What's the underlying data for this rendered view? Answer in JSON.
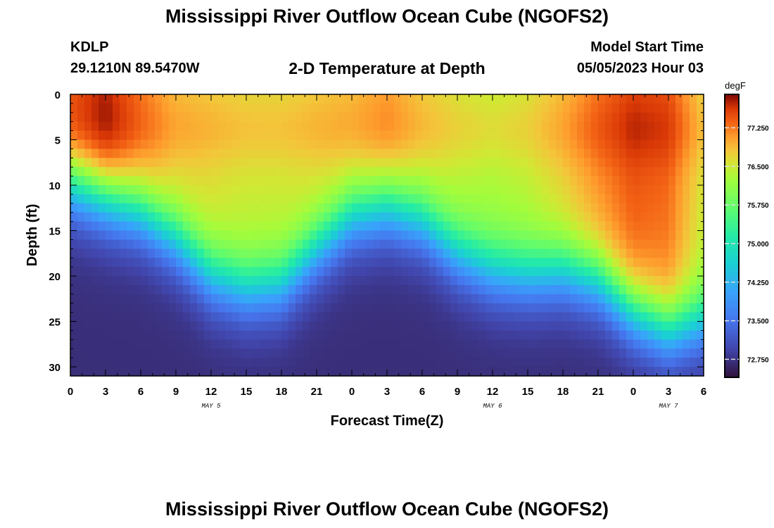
{
  "header": {
    "title": "Mississippi River Outflow Ocean Cube (NGOFS2)",
    "station_id": "KDLP",
    "location": "29.1210N  89.5470W",
    "subtitle": "2-D Temperature at Depth",
    "model_start_label": "Model Start Time",
    "model_start_value": "05/05/2023 Hour 03"
  },
  "footer": {
    "title": "Mississippi River Outflow Ocean Cube (NGOFS2)"
  },
  "chart_data": {
    "type": "heatmap",
    "xlabel": "Forecast Time(Z)",
    "ylabel": "Depth (ft)",
    "x_range_hours": [
      0,
      54
    ],
    "x_ticks": [
      {
        "hour": 0,
        "label": "0"
      },
      {
        "hour": 3,
        "label": "3"
      },
      {
        "hour": 6,
        "label": "6"
      },
      {
        "hour": 9,
        "label": "9"
      },
      {
        "hour": 12,
        "label": "12"
      },
      {
        "hour": 15,
        "label": "15"
      },
      {
        "hour": 18,
        "label": "18"
      },
      {
        "hour": 21,
        "label": "21"
      },
      {
        "hour": 24,
        "label": "0"
      },
      {
        "hour": 27,
        "label": "3"
      },
      {
        "hour": 30,
        "label": "6"
      },
      {
        "hour": 33,
        "label": "9"
      },
      {
        "hour": 36,
        "label": "12"
      },
      {
        "hour": 39,
        "label": "15"
      },
      {
        "hour": 42,
        "label": "18"
      },
      {
        "hour": 45,
        "label": "21"
      },
      {
        "hour": 48,
        "label": "0"
      },
      {
        "hour": 51,
        "label": "3"
      },
      {
        "hour": 54,
        "label": "6"
      }
    ],
    "date_labels": [
      {
        "hour": 12,
        "label": "MAY 5"
      },
      {
        "hour": 36,
        "label": "MAY 6"
      },
      {
        "hour": 51,
        "label": "MAY 7"
      }
    ],
    "y_range": [
      0,
      31
    ],
    "y_ticks": [
      0,
      5,
      10,
      15,
      20,
      25,
      30
    ],
    "colorbar": {
      "unit": "degF",
      "range": [
        72.4,
        77.9
      ],
      "ticks": [
        "77.250",
        "76.500",
        "75.750",
        "75.000",
        "74.250",
        "73.500",
        "72.750"
      ]
    },
    "thermocline_depth_ft": [
      {
        "hour": 0,
        "depth": 10
      },
      {
        "hour": 3,
        "depth": 11.5
      },
      {
        "hour": 6,
        "depth": 13
      },
      {
        "hour": 9,
        "depth": 16
      },
      {
        "hour": 12,
        "depth": 20
      },
      {
        "hour": 15,
        "depth": 21.5
      },
      {
        "hour": 18,
        "depth": 21
      },
      {
        "hour": 21,
        "depth": 17
      },
      {
        "hour": 24,
        "depth": 13.5
      },
      {
        "hour": 27,
        "depth": 12.5
      },
      {
        "hour": 30,
        "depth": 14
      },
      {
        "hour": 33,
        "depth": 17.5
      },
      {
        "hour": 36,
        "depth": 19.5
      },
      {
        "hour": 39,
        "depth": 20
      },
      {
        "hour": 42,
        "depth": 19.5
      },
      {
        "hour": 45,
        "depth": 20.5
      },
      {
        "hour": 48,
        "depth": 24
      },
      {
        "hour": 51,
        "depth": 26
      },
      {
        "hour": 54,
        "depth": 25
      }
    ],
    "surface_temp_degF": [
      {
        "hour": 0,
        "temp": 77.4
      },
      {
        "hour": 3,
        "temp": 77.7
      },
      {
        "hour": 6,
        "temp": 77.2
      },
      {
        "hour": 9,
        "temp": 76.8
      },
      {
        "hour": 12,
        "temp": 76.7
      },
      {
        "hour": 15,
        "temp": 76.6
      },
      {
        "hour": 18,
        "temp": 76.6
      },
      {
        "hour": 21,
        "temp": 76.7
      },
      {
        "hour": 24,
        "temp": 76.8
      },
      {
        "hour": 27,
        "temp": 77.0
      },
      {
        "hour": 30,
        "temp": 76.7
      },
      {
        "hour": 33,
        "temp": 76.5
      },
      {
        "hour": 36,
        "temp": 76.4
      },
      {
        "hour": 39,
        "temp": 76.5
      },
      {
        "hour": 42,
        "temp": 76.8
      },
      {
        "hour": 45,
        "temp": 77.2
      },
      {
        "hour": 48,
        "temp": 77.5
      },
      {
        "hour": 51,
        "temp": 77.4
      },
      {
        "hour": 54,
        "temp": 76.6
      }
    ],
    "bottom_temp_degF": 72.7
  }
}
